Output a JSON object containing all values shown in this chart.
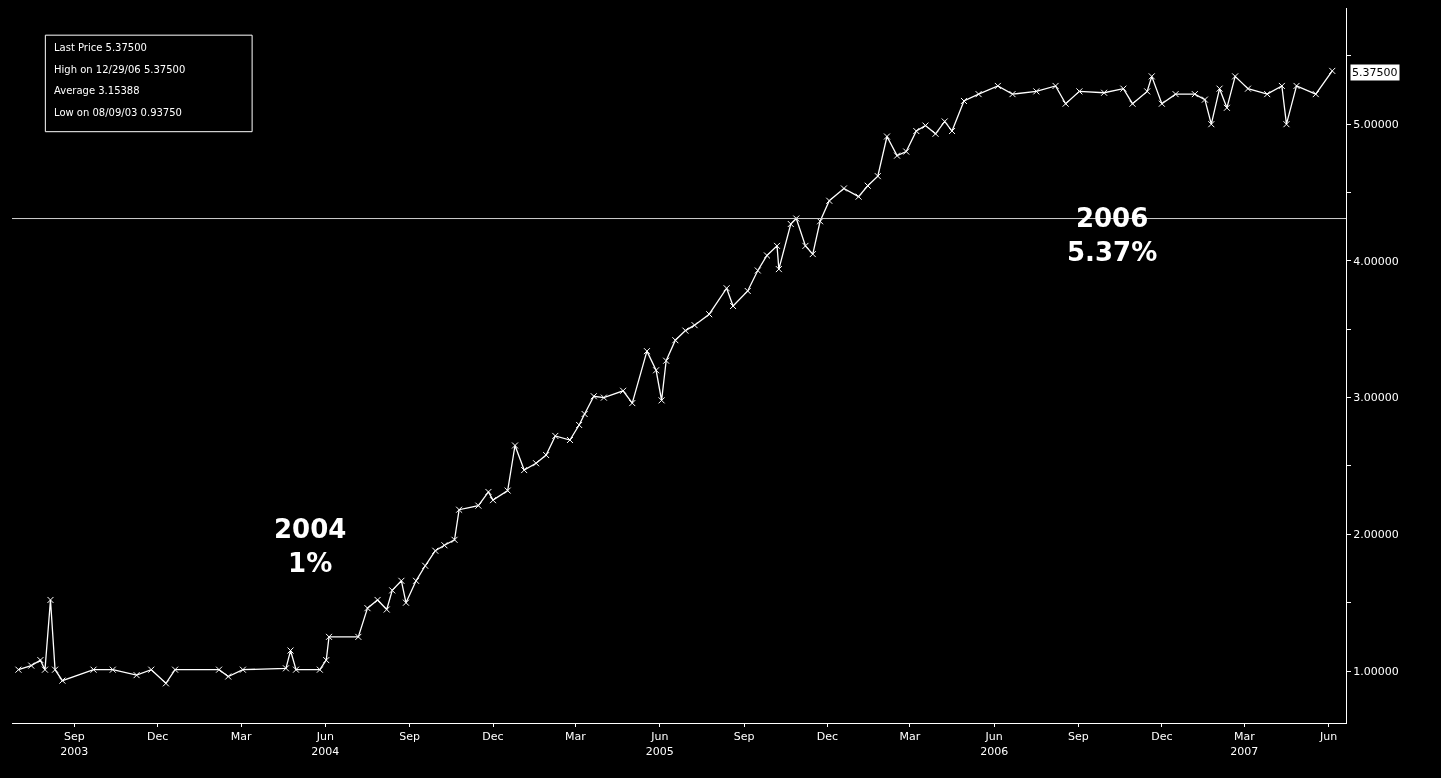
{
  "chart_data": {
    "type": "line",
    "marker": "cross",
    "line_style": "solid",
    "grid": false,
    "x": [
      "2003-07-02",
      "2003-07-16",
      "2003-07-26",
      "2003-07-31",
      "2003-08-06",
      "2003-08-11",
      "2003-08-19",
      "2003-09-22",
      "2003-10-13",
      "2003-11-08",
      "2003-11-24",
      "2003-12-10",
      "2003-12-20",
      "2004-02-06",
      "2004-02-16",
      "2004-03-03",
      "2004-04-19",
      "2004-04-24",
      "2004-04-30",
      "2004-05-26",
      "2004-06-02",
      "2004-06-05",
      "2004-07-07",
      "2004-07-17",
      "2004-07-28",
      "2004-08-07",
      "2004-08-13",
      "2004-08-23",
      "2004-08-28",
      "2004-09-08",
      "2004-09-18",
      "2004-09-29",
      "2004-10-09",
      "2004-10-20",
      "2004-10-25",
      "2004-11-15",
      "2004-11-26",
      "2004-12-01",
      "2004-12-17",
      "2004-12-25",
      "2005-01-04",
      "2005-01-17",
      "2005-01-28",
      "2005-02-07",
      "2005-02-23",
      "2005-03-05",
      "2005-03-11",
      "2005-03-21",
      "2005-04-01",
      "2005-04-22",
      "2005-05-02",
      "2005-05-18",
      "2005-05-28",
      "2005-06-03",
      "2005-06-08",
      "2005-06-18",
      "2005-06-29",
      "2005-07-09",
      "2005-07-25",
      "2005-08-13",
      "2005-08-20",
      "2005-09-05",
      "2005-09-16",
      "2005-09-26",
      "2005-10-07",
      "2005-10-09",
      "2005-10-22",
      "2005-10-28",
      "2005-11-07",
      "2005-11-15",
      "2005-11-23",
      "2005-12-03",
      "2005-12-19",
      "2006-01-04",
      "2006-01-14",
      "2006-01-25",
      "2006-02-04",
      "2006-02-15",
      "2006-02-25",
      "2006-03-08",
      "2006-03-18",
      "2006-03-29",
      "2006-04-08",
      "2006-04-16",
      "2006-04-29",
      "2006-05-15",
      "2006-06-05",
      "2006-06-21",
      "2006-07-17",
      "2006-08-07",
      "2006-08-18",
      "2006-09-02",
      "2006-09-29",
      "2006-10-20",
      "2006-10-30",
      "2006-11-15",
      "2006-11-20",
      "2006-12-01",
      "2006-12-16",
      "2007-01-06",
      "2007-01-17",
      "2007-01-24",
      "2007-02-02",
      "2007-02-10",
      "2007-02-19",
      "2007-03-05",
      "2007-03-26",
      "2007-04-11",
      "2007-04-16",
      "2007-04-27",
      "2007-05-18",
      "2007-06-05"
    ],
    "series": [
      {
        "color": "#ffffff",
        "values": [
          1.01,
          1.04,
          1.08,
          1.01,
          1.52,
          1.01,
          0.93,
          1.01,
          1.01,
          0.97,
          1.01,
          0.91,
          1.01,
          1.01,
          0.96,
          1.01,
          1.02,
          1.15,
          1.01,
          1.01,
          1.08,
          1.25,
          1.25,
          1.46,
          1.52,
          1.45,
          1.59,
          1.66,
          1.5,
          1.66,
          1.77,
          1.88,
          1.92,
          1.96,
          2.18,
          2.21,
          2.31,
          2.25,
          2.32,
          2.65,
          2.47,
          2.52,
          2.58,
          2.72,
          2.69,
          2.8,
          2.88,
          3.01,
          3.0,
          3.05,
          2.96,
          3.34,
          3.2,
          2.98,
          3.27,
          3.42,
          3.49,
          3.53,
          3.61,
          3.8,
          3.67,
          3.78,
          3.93,
          4.04,
          4.11,
          3.94,
          4.27,
          4.31,
          4.11,
          4.05,
          4.29,
          4.44,
          4.53,
          4.47,
          4.55,
          4.62,
          4.91,
          4.77,
          4.8,
          4.95,
          4.99,
          4.93,
          5.02,
          4.95,
          5.17,
          5.22,
          5.28,
          5.22,
          5.24,
          5.28,
          5.15,
          5.24,
          5.23,
          5.26,
          5.15,
          5.24,
          5.35,
          5.15,
          5.22,
          5.22,
          5.18,
          5.0,
          5.26,
          5.12,
          5.35,
          5.26,
          5.22,
          5.28,
          5.0,
          5.28,
          5.22,
          5.39
        ]
      }
    ],
    "xlim": [
      "2003-06-25",
      "2007-06-20"
    ],
    "xticks": [
      {
        "value": "2003-09-01",
        "label": "Sep\n2003"
      },
      {
        "value": "2003-12-01",
        "label": "Dec"
      },
      {
        "value": "2004-03-01",
        "label": "Mar"
      },
      {
        "value": "2004-06-01",
        "label": "Jun\n2004"
      },
      {
        "value": "2004-09-01",
        "label": "Sep"
      },
      {
        "value": "2004-12-01",
        "label": "Dec"
      },
      {
        "value": "2005-03-01",
        "label": "Mar"
      },
      {
        "value": "2005-06-01",
        "label": "Jun\n2005"
      },
      {
        "value": "2005-09-01",
        "label": "Sep"
      },
      {
        "value": "2005-12-01",
        "label": "Dec"
      },
      {
        "value": "2006-03-01",
        "label": "Mar"
      },
      {
        "value": "2006-06-01",
        "label": "Jun\n2006"
      },
      {
        "value": "2006-09-01",
        "label": "Sep"
      },
      {
        "value": "2006-12-01",
        "label": "Dec"
      },
      {
        "value": "2007-03-01",
        "label": "Mar\n2007"
      },
      {
        "value": "2007-06-01",
        "label": "Jun"
      }
    ],
    "ylim": [
      0.62,
      5.85
    ],
    "yticks": [
      {
        "value": 1,
        "label": "1.00000"
      },
      {
        "value": 1.5,
        "label": null
      },
      {
        "value": 2,
        "label": "2.00000"
      },
      {
        "value": 2.5,
        "label": null
      },
      {
        "value": 3,
        "label": "3.00000"
      },
      {
        "value": 3.5,
        "label": null
      },
      {
        "value": 4,
        "label": "4.00000"
      },
      {
        "value": 4.5,
        "label": null
      },
      {
        "value": 5,
        "label": "5.00000"
      },
      {
        "value": 5.5,
        "label": null
      }
    ],
    "ref_lines": [
      {
        "axis": "y",
        "value": 4.31,
        "color": "#d0d0d0"
      }
    ],
    "annotations": [
      "Last Price 5.37500",
      "High on 12/29/06 5.37500",
      "Average 3.15388",
      "Low on 08/09/03 0.93750",
      "2004\n1%",
      "2006\n5.37%",
      {
        "text": "5.37500",
        "x": "2007-06-05",
        "y": 5.375
      }
    ]
  }
}
